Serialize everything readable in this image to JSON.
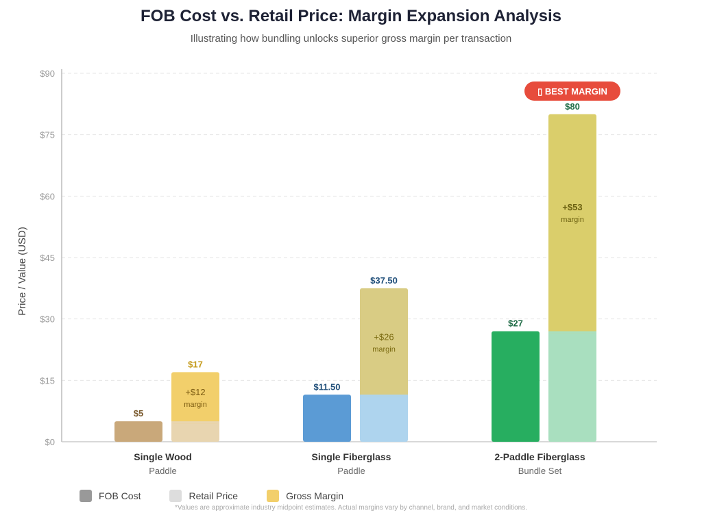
{
  "header": {
    "title": "FOB Cost vs. Retail Price: Margin Expansion Analysis",
    "subtitle": "Illustrating how bundling unlocks superior gross margin per transaction"
  },
  "badge": {
    "icon": "trophy-icon",
    "text": "▯ BEST MARGIN",
    "color": "#e74c3c"
  },
  "legend": [
    {
      "label": "FOB Cost",
      "color": "#999999"
    },
    {
      "label": "Retail Price",
      "color": "#dddddd"
    },
    {
      "label": "Gross Margin",
      "color": "#f2cf6b"
    }
  ],
  "footnote": "*Values are approximate industry midpoint estimates. Actual margins vary by channel, brand, and market conditions.",
  "chart_data": {
    "type": "bar",
    "title": "FOB Cost vs. Retail Price: Margin Expansion Analysis",
    "subtitle": "Illustrating how bundling unlocks superior gross margin per transaction",
    "xlabel": "",
    "ylabel": "Price / Value (USD)",
    "ylim": [
      0,
      90
    ],
    "yticks": [
      0,
      15,
      30,
      45,
      60,
      75,
      90
    ],
    "ytick_labels": [
      "$0",
      "$15",
      "$30",
      "$45",
      "$60",
      "$75",
      "$90"
    ],
    "grid": true,
    "legend_position": "bottom-left",
    "categories": [
      {
        "name": "Single Wood",
        "sub": "Paddle"
      },
      {
        "name": "Single Fiberglass",
        "sub": "Paddle"
      },
      {
        "name": "2-Paddle Fiberglass",
        "sub": "Bundle Set"
      }
    ],
    "series": [
      {
        "name": "FOB Cost",
        "values": [
          5,
          11.5,
          27
        ],
        "labels": [
          "$5",
          "$11.50",
          "$27"
        ]
      },
      {
        "name": "Retail Price",
        "values": [
          17,
          37.5,
          80
        ],
        "labels": [
          "$17",
          "$37.50",
          "$80"
        ]
      },
      {
        "name": "Gross Margin",
        "values": [
          12,
          26,
          53
        ],
        "labels": [
          "+$12",
          "+$26",
          "+$53"
        ],
        "sublabel": "margin"
      }
    ],
    "colors": [
      {
        "fob": "#c9a87a",
        "retail_base": "#e8d5b0",
        "margin": "#f2cf6b",
        "fob_label": "#7a5a2e",
        "retail_label": "#c49a1a",
        "margin_label": "#7a5a10"
      },
      {
        "fob": "#5b9bd5",
        "retail_base": "#aed4ee",
        "margin": "#d9cc84",
        "fob_label": "#1f4e79",
        "retail_label": "#1f4e79",
        "margin_label": "#7a6a10"
      },
      {
        "fob": "#27ae60",
        "retail_base": "#a9dfbf",
        "margin": "#dace6b",
        "fob_label": "#1e6b45",
        "retail_label": "#1e6b45",
        "margin_label": "#6b6010"
      }
    ],
    "annotation": "BEST MARGIN"
  }
}
